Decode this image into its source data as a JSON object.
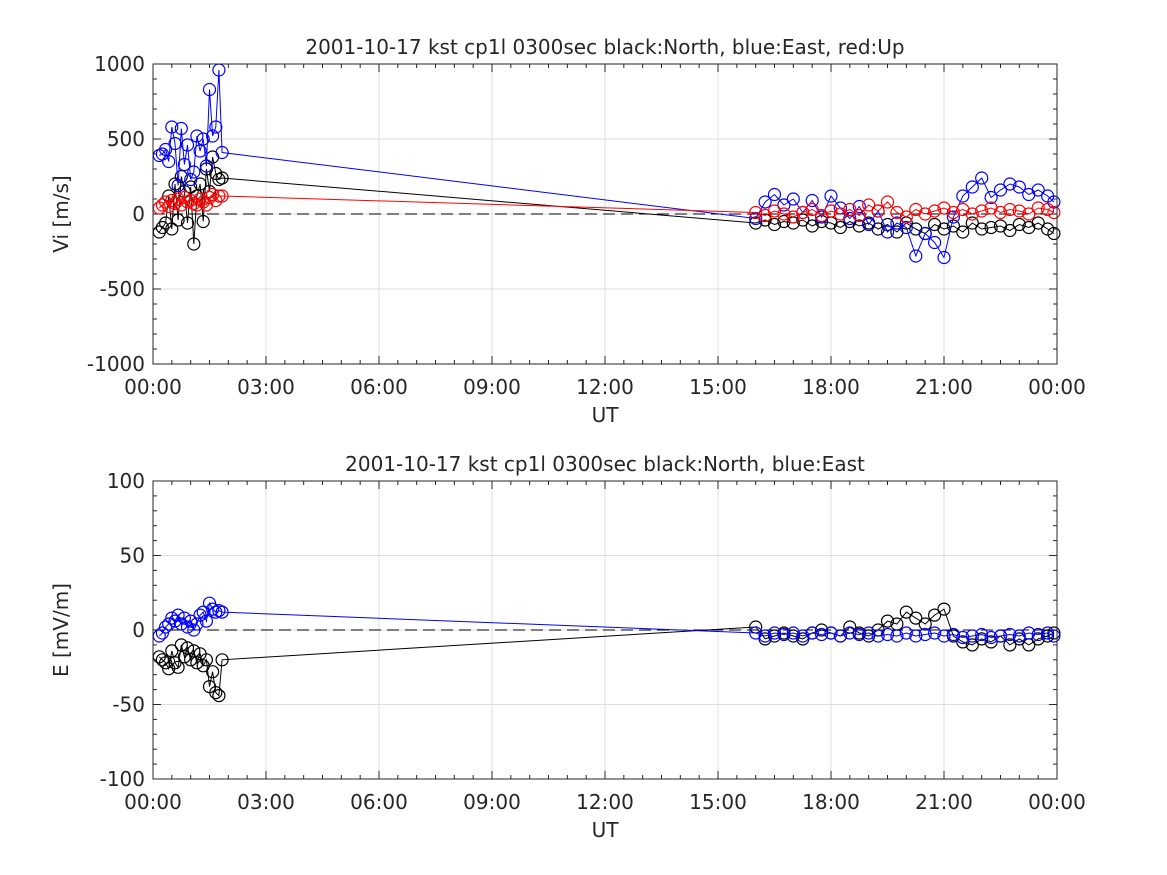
{
  "chart_data": [
    {
      "type": "scatter",
      "title": "2001-10-17 kst cp1l 0300sec black:North, blue:East, red:Up",
      "xlabel": "UT",
      "ylabel": "Vi [m/s]",
      "xlim": [
        "00:00",
        "00:00"
      ],
      "ylim": [
        -1000,
        1000
      ],
      "xticks": [
        "00:00",
        "03:00",
        "06:00",
        "09:00",
        "12:00",
        "15:00",
        "18:00",
        "21:00",
        "00:00"
      ],
      "yticks": [
        "-1000",
        "-500",
        "0",
        "500",
        "1000"
      ],
      "grid": true,
      "zero_line": true,
      "series": [
        {
          "color": "#000000",
          "x": [
            "00:10",
            "00:15",
            "00:20",
            "00:25",
            "00:30",
            "00:35",
            "00:40",
            "00:45",
            "00:50",
            "00:55",
            "01:00",
            "01:05",
            "01:10",
            "01:15",
            "01:20",
            "01:25",
            "01:30",
            "01:35",
            "01:40",
            "01:45",
            "01:50",
            "16:00",
            "16:15",
            "16:30",
            "16:45",
            "17:00",
            "17:15",
            "17:30",
            "17:45",
            "18:00",
            "18:15",
            "18:30",
            "18:45",
            "19:00",
            "19:15",
            "19:30",
            "19:45",
            "20:00",
            "20:15",
            "20:30",
            "20:45",
            "21:00",
            "21:15",
            "21:30",
            "21:45",
            "22:00",
            "22:15",
            "22:30",
            "22:45",
            "23:00",
            "23:15",
            "23:30",
            "23:45",
            "23:55"
          ],
          "y": [
            -120,
            -90,
            -60,
            120,
            -100,
            200,
            -40,
            250,
            150,
            -60,
            180,
            -200,
            120,
            200,
            -50,
            300,
            150,
            380,
            270,
            230,
            240,
            -60,
            -40,
            -70,
            -50,
            -60,
            -40,
            -80,
            -50,
            -60,
            -90,
            -50,
            -80,
            -60,
            -100,
            -70,
            -120,
            -60,
            -100,
            -130,
            -70,
            -100,
            -80,
            -120,
            -60,
            -100,
            -90,
            -80,
            -110,
            -70,
            -90,
            -60,
            -100,
            -130
          ]
        },
        {
          "color": "#0000ff",
          "x": [
            "00:10",
            "00:15",
            "00:20",
            "00:25",
            "00:30",
            "00:35",
            "00:40",
            "00:45",
            "00:50",
            "00:55",
            "01:00",
            "01:05",
            "01:10",
            "01:15",
            "01:20",
            "01:25",
            "01:30",
            "01:35",
            "01:40",
            "01:45",
            "01:50",
            "16:00",
            "16:15",
            "16:30",
            "16:45",
            "17:00",
            "17:15",
            "17:30",
            "17:45",
            "18:00",
            "18:15",
            "18:30",
            "18:45",
            "19:00",
            "19:15",
            "19:30",
            "19:45",
            "20:00",
            "20:15",
            "20:30",
            "20:45",
            "21:00",
            "21:15",
            "21:30",
            "21:45",
            "22:00",
            "22:15",
            "22:30",
            "22:45",
            "23:00",
            "23:15",
            "23:30",
            "23:45",
            "23:55"
          ],
          "y": [
            390,
            400,
            430,
            350,
            580,
            470,
            190,
            570,
            330,
            460,
            230,
            280,
            520,
            420,
            500,
            320,
            830,
            520,
            580,
            960,
            410,
            -30,
            80,
            130,
            60,
            100,
            10,
            90,
            -20,
            120,
            40,
            -30,
            50,
            -70,
            20,
            -120,
            -60,
            -90,
            -280,
            -130,
            -190,
            -290,
            -20,
            120,
            180,
            240,
            110,
            160,
            200,
            180,
            130,
            160,
            120,
            80
          ]
        },
        {
          "color": "#ff0000",
          "x": [
            "00:10",
            "00:15",
            "00:20",
            "00:25",
            "00:30",
            "00:35",
            "00:40",
            "00:45",
            "00:50",
            "00:55",
            "01:00",
            "01:05",
            "01:10",
            "01:15",
            "01:20",
            "01:25",
            "01:30",
            "01:35",
            "01:40",
            "01:45",
            "01:50",
            "16:00",
            "16:15",
            "16:30",
            "16:45",
            "17:00",
            "17:15",
            "17:30",
            "17:45",
            "18:00",
            "18:15",
            "18:30",
            "18:45",
            "19:00",
            "19:15",
            "19:30",
            "19:45",
            "20:00",
            "20:15",
            "20:30",
            "20:45",
            "21:00",
            "21:15",
            "21:30",
            "21:45",
            "22:00",
            "22:15",
            "22:30",
            "22:45",
            "23:00",
            "23:15",
            "23:30",
            "23:45",
            "23:55"
          ],
          "y": [
            40,
            60,
            80,
            50,
            90,
            70,
            100,
            60,
            110,
            80,
            90,
            70,
            60,
            100,
            80,
            60,
            110,
            130,
            90,
            120,
            120,
            10,
            -10,
            20,
            0,
            -20,
            10,
            30,
            -10,
            20,
            0,
            30,
            -10,
            60,
            20,
            80,
            10,
            -20,
            30,
            0,
            20,
            40,
            10,
            30,
            0,
            20,
            40,
            10,
            30,
            20,
            0,
            40,
            30,
            10
          ]
        }
      ]
    },
    {
      "type": "scatter",
      "title": "2001-10-17 kst cp1l 0300sec black:North, blue:East",
      "xlabel": "UT",
      "ylabel": "E [mV/m]",
      "xlim": [
        "00:00",
        "00:00"
      ],
      "ylim": [
        -100,
        100
      ],
      "xticks": [
        "00:00",
        "03:00",
        "06:00",
        "09:00",
        "12:00",
        "15:00",
        "18:00",
        "21:00",
        "00:00"
      ],
      "yticks": [
        "-100",
        "-50",
        "0",
        "50",
        "100"
      ],
      "grid": true,
      "zero_line": true,
      "series": [
        {
          "color": "#000000",
          "x": [
            "00:10",
            "00:15",
            "00:20",
            "00:25",
            "00:30",
            "00:35",
            "00:40",
            "00:45",
            "00:50",
            "00:55",
            "01:00",
            "01:05",
            "01:10",
            "01:15",
            "01:20",
            "01:25",
            "01:30",
            "01:35",
            "01:40",
            "01:45",
            "01:50",
            "16:00",
            "16:15",
            "16:30",
            "16:45",
            "17:00",
            "17:15",
            "17:30",
            "17:45",
            "18:00",
            "18:15",
            "18:30",
            "18:45",
            "19:00",
            "19:15",
            "19:30",
            "19:45",
            "20:00",
            "20:15",
            "20:30",
            "20:45",
            "21:00",
            "21:15",
            "21:30",
            "21:45",
            "22:00",
            "22:15",
            "22:30",
            "22:45",
            "23:00",
            "23:15",
            "23:30",
            "23:45",
            "23:55"
          ],
          "y": [
            -18,
            -20,
            -22,
            -26,
            -14,
            -22,
            -25,
            -10,
            -18,
            -12,
            -20,
            -14,
            -22,
            -16,
            -24,
            -20,
            -38,
            -28,
            -42,
            -44,
            -20,
            2,
            -6,
            -4,
            -2,
            -4,
            -6,
            -2,
            0,
            -2,
            -4,
            2,
            -2,
            -4,
            0,
            6,
            4,
            12,
            8,
            4,
            10,
            14,
            -4,
            -8,
            -10,
            -6,
            -8,
            -4,
            -10,
            -6,
            -10,
            -6,
            -4,
            -2
          ]
        },
        {
          "color": "#0000ff",
          "x": [
            "00:10",
            "00:15",
            "00:20",
            "00:25",
            "00:30",
            "00:35",
            "00:40",
            "00:45",
            "00:50",
            "00:55",
            "01:00",
            "01:05",
            "01:10",
            "01:15",
            "01:20",
            "01:25",
            "01:30",
            "01:35",
            "01:40",
            "01:45",
            "01:50",
            "16:00",
            "16:15",
            "16:30",
            "16:45",
            "17:00",
            "17:15",
            "17:30",
            "17:45",
            "18:00",
            "18:15",
            "18:30",
            "18:45",
            "19:00",
            "19:15",
            "19:30",
            "19:45",
            "20:00",
            "20:15",
            "20:30",
            "20:45",
            "21:00",
            "21:15",
            "21:30",
            "21:45",
            "22:00",
            "22:15",
            "22:30",
            "22:45",
            "23:00",
            "23:15",
            "23:30",
            "23:45",
            "23:55"
          ],
          "y": [
            -4,
            -2,
            2,
            4,
            8,
            6,
            10,
            4,
            8,
            2,
            6,
            0,
            4,
            10,
            12,
            6,
            18,
            14,
            12,
            13,
            12,
            -2,
            -4,
            -2,
            -3,
            -2,
            -4,
            -2,
            -3,
            -2,
            -4,
            -2,
            -3,
            -2,
            -4,
            -3,
            -4,
            -2,
            -4,
            -3,
            -2,
            -4,
            -3,
            -5,
            -4,
            -3,
            -5,
            -4,
            -3,
            -4,
            -2,
            -3,
            -2,
            -4
          ]
        }
      ]
    }
  ]
}
